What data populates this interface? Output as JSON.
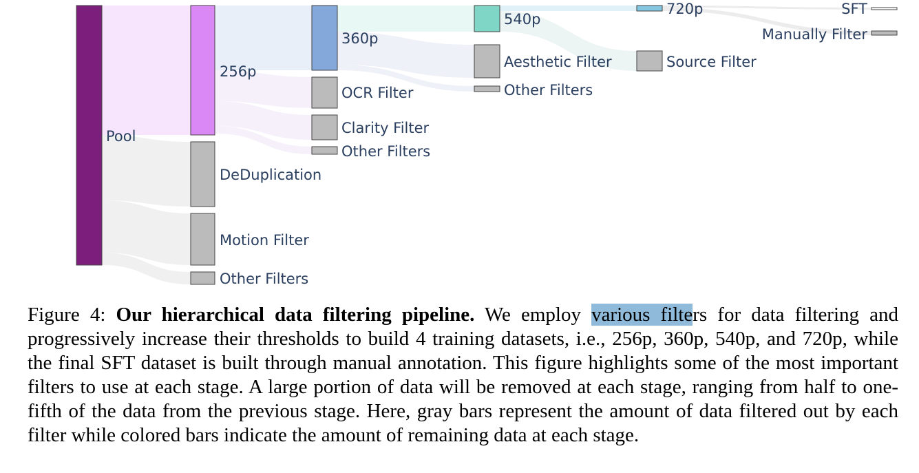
{
  "figure": {
    "nodes": [
      {
        "id": "pool",
        "label": "Pool",
        "color": "#7c1f7c"
      },
      {
        "id": "p256",
        "label": "256p",
        "color": "#da88f5"
      },
      {
        "id": "dedup",
        "label": "DeDuplication",
        "color": "#bbbbbb"
      },
      {
        "id": "motion",
        "label": "Motion Filter",
        "color": "#bbbbbb"
      },
      {
        "id": "other1",
        "label": "Other Filters",
        "color": "#bbbbbb"
      },
      {
        "id": "p360",
        "label": "360p",
        "color": "#85a8da"
      },
      {
        "id": "ocr",
        "label": "OCR Filter",
        "color": "#bbbbbb"
      },
      {
        "id": "clarity",
        "label": "Clarity Filter",
        "color": "#bbbbbb"
      },
      {
        "id": "other2",
        "label": "Other Filters",
        "color": "#bbbbbb"
      },
      {
        "id": "p540",
        "label": "540p",
        "color": "#80d6c6"
      },
      {
        "id": "aesthetic",
        "label": "Aesthetic Filter",
        "color": "#bbbbbb"
      },
      {
        "id": "other3",
        "label": "Other Filters",
        "color": "#bbbbbb"
      },
      {
        "id": "p720",
        "label": "720p",
        "color": "#85c7e0"
      },
      {
        "id": "source",
        "label": "Source Filter",
        "color": "#bbbbbb"
      },
      {
        "id": "sft",
        "label": "SFT",
        "color": "#ffffff"
      },
      {
        "id": "manual",
        "label": "Manually Filter",
        "color": "#bbbbbb"
      }
    ]
  },
  "caption": {
    "prefix": "Figure 4: ",
    "bold": "Our hierarchical data filtering pipeline.",
    "text_before_highlight": " We employ ",
    "highlight": "various filte",
    "text_after_highlight": "rs for data filtering and progressively increase their thresholds to build 4 training datasets, i.e., 256p, 360p, 540p, and 720p, while the final SFT dataset is built through manual annotation. This figure highlights some of the most important filters to use at each stage. A large portion of data will be removed at each stage, ranging from half to one-fifth of the data from the previous stage. Here, gray bars represent the amount of data filtered out by each filter while colored bars indicate the amount of remaining data at each stage."
  }
}
